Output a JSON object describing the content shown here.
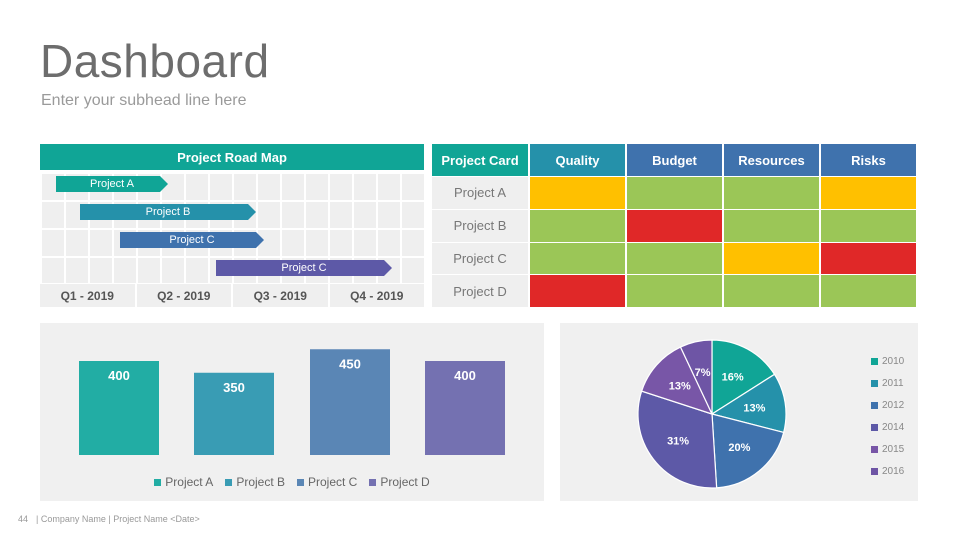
{
  "title": "Dashboard",
  "subtitle": "Enter your subhead line here",
  "roadmap": {
    "header": "Project Road Map",
    "bars": [
      {
        "label": "Project A",
        "color": "#10a596"
      },
      {
        "label": "Project B",
        "color": "#2591aa"
      },
      {
        "label": "Project C",
        "color": "#3f72ad"
      },
      {
        "label": "Project C",
        "color": "#5d59a7"
      }
    ],
    "quarters": [
      "Q1 - 2019",
      "Q2 - 2019",
      "Q3 - 2019",
      "Q4 - 2019"
    ]
  },
  "project_card": {
    "headers": [
      "Project Card",
      "Quality",
      "Budget",
      "Resources",
      "Risks"
    ],
    "header_colors": [
      "#10a596",
      "#2591aa",
      "#3f72ad",
      "#3f72ad",
      "#3f72ad"
    ],
    "rows": [
      {
        "label": "Project A",
        "statuses": [
          "yellow",
          "green",
          "green",
          "yellow"
        ]
      },
      {
        "label": "Project B",
        "statuses": [
          "green",
          "red",
          "green",
          "green"
        ]
      },
      {
        "label": "Project C",
        "statuses": [
          "green",
          "green",
          "yellow",
          "red"
        ]
      },
      {
        "label": "Project D",
        "statuses": [
          "red",
          "green",
          "green",
          "green"
        ]
      }
    ],
    "status_colors": {
      "green": "#9bc657",
      "yellow": "#ffc000",
      "red": "#e02828"
    }
  },
  "chart_data": [
    {
      "type": "bar",
      "categories": [
        "Project A",
        "Project B",
        "Project C",
        "Project D"
      ],
      "values": [
        400,
        350,
        450,
        400
      ],
      "colors": [
        "#22ada4",
        "#399cb4",
        "#5a86b5",
        "#7471b1"
      ],
      "legend": "bottom",
      "grid": false
    },
    {
      "type": "pie",
      "categories": [
        "2010",
        "2011",
        "2012",
        "2014",
        "2015",
        "2016"
      ],
      "values": [
        16,
        13,
        20,
        31,
        13,
        7
      ],
      "labels": [
        "16%",
        "13%",
        "20%",
        "31%",
        "13%",
        "7%"
      ],
      "colors": [
        "#10a596",
        "#2591aa",
        "#3f72ad",
        "#5d59a7",
        "#7856a7",
        "#6e55a5"
      ],
      "legend": "right"
    }
  ],
  "footer": {
    "page_number": "44",
    "text": "| Company Name | Project Name <Date>"
  }
}
